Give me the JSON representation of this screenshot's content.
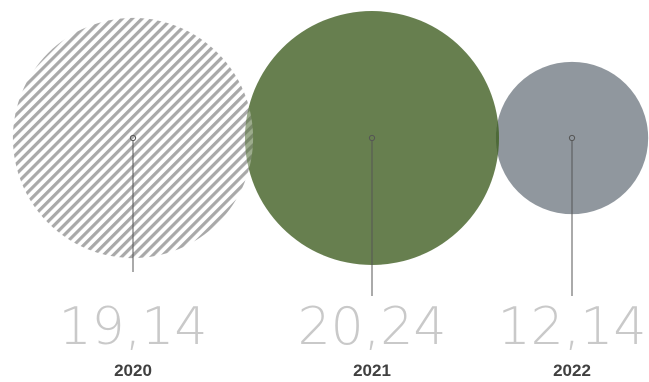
{
  "chart_data": {
    "type": "bubble",
    "categories": [
      "2020",
      "2021",
      "2022"
    ],
    "values": [
      19.14,
      20.24,
      12.14
    ],
    "value_labels": [
      "19,14",
      "20,24",
      "12,14"
    ],
    "series": [
      {
        "category": "2020",
        "value": 19.14,
        "label": "19,14",
        "fill": "hatched",
        "color": "#a9a9a9"
      },
      {
        "category": "2021",
        "value": 20.24,
        "label": "20,24",
        "fill": "solid",
        "color": "#5a7440"
      },
      {
        "category": "2022",
        "value": 12.14,
        "label": "12,14",
        "fill": "solid",
        "color": "#878e96"
      }
    ],
    "title": "",
    "xlabel": "",
    "ylabel": "",
    "legend": "none",
    "grid": false
  },
  "colors": {
    "hatch_stripe": "#a9a9a9",
    "overlap_2021": "#4e6a38",
    "leader_line": "#555555",
    "value_text": "#c9c9c9",
    "year_text": "#404040"
  }
}
